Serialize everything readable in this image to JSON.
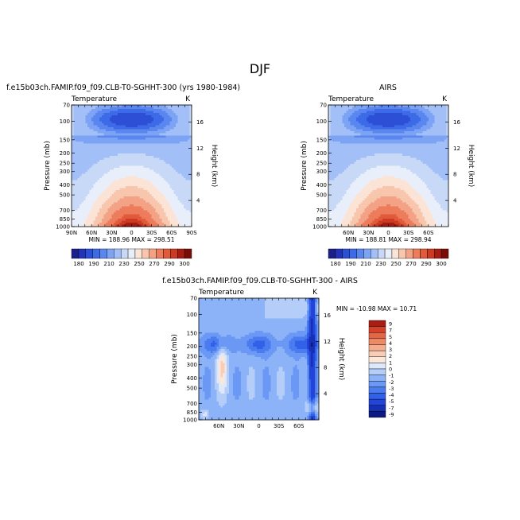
{
  "page_title": "DJF",
  "chart_data": [
    {
      "type": "heatmap",
      "title": "f.e15b03ch.FAMIP.f09_f09.CLB-T0-SGHHT-300 (yrs 1980-1984)",
      "field": "Temperature",
      "units": "K",
      "ylabel": "Pressure (mb)",
      "ylabel_right": "Height (km)",
      "x_ticks": [
        "90N",
        "60N",
        "30N",
        "0",
        "30S",
        "60S",
        "90S"
      ],
      "y_ticks": [
        "70",
        "100",
        "150",
        "200",
        "250",
        "300",
        "400",
        "500",
        "700",
        "850",
        "1000"
      ],
      "height_ticks": [
        "16",
        "12",
        "8",
        "4"
      ],
      "ylim": [
        1000,
        70
      ],
      "min_label": "MIN = 188.96",
      "max_label": "MAX = 298.51",
      "colorbar_labels": [
        "180",
        "190",
        "210",
        "230",
        "250",
        "270",
        "290",
        "300"
      ]
    },
    {
      "type": "heatmap",
      "title": "AIRS",
      "field": "Temperature",
      "units": "K",
      "ylabel": "Pressure (mb)",
      "ylabel_right": "Height (km)",
      "x_ticks": [
        "60N",
        "30N",
        "0",
        "30S",
        "60S"
      ],
      "y_ticks": [
        "70",
        "100",
        "150",
        "200",
        "250",
        "300",
        "400",
        "500",
        "700",
        "850",
        "1000"
      ],
      "height_ticks": [
        "16",
        "12",
        "8",
        "4"
      ],
      "ylim": [
        1000,
        70
      ],
      "min_label": "MIN = 188.81",
      "max_label": "MAX = 298.94",
      "colorbar_labels": [
        "180",
        "190",
        "210",
        "230",
        "250",
        "270",
        "290",
        "300"
      ]
    },
    {
      "type": "heatmap",
      "title": "f.e15b03ch.FAMIP.f09_f09.CLB-T0-SGHHT-300 - AIRS",
      "field": "Temperature",
      "units": "K",
      "ylabel": "Pressure (mb)",
      "ylabel_right": "Height (km)",
      "x_ticks": [
        "60N",
        "30N",
        "0",
        "30S",
        "60S"
      ],
      "y_ticks": [
        "70",
        "100",
        "150",
        "200",
        "250",
        "300",
        "400",
        "500",
        "700",
        "850",
        "1000"
      ],
      "height_ticks": [
        "16",
        "12",
        "8",
        "4"
      ],
      "ylim": [
        1000,
        70
      ],
      "min_label": "MIN = -10.98",
      "max_label": "MAX =  10.71",
      "colorbar_labels": [
        "9",
        "7",
        "5",
        "4",
        "3",
        "2",
        "1",
        "0",
        "-1",
        "-2",
        "-3",
        "-4",
        "-5",
        "-7",
        "-9"
      ]
    }
  ],
  "palette_abs": [
    "#1b1f8c",
    "#2233b8",
    "#2d4fd6",
    "#3d6ae6",
    "#5a86f0",
    "#7da3f5",
    "#a3bff8",
    "#c8d9f8",
    "#e9eefb",
    "#fbe4d6",
    "#f7c6ad",
    "#f3a285",
    "#ec7c5b",
    "#e15a3b",
    "#cc3a24",
    "#a61c12",
    "#7a0c08"
  ],
  "palette_diff": [
    "#0a1a80",
    "#1530b5",
    "#2244d8",
    "#3360e8",
    "#4a7cf0",
    "#6a98f4",
    "#8cb2f7",
    "#b4cdf9",
    "#dde8fb",
    "#fbe6da",
    "#f8cdb7",
    "#f5ad8e",
    "#ef8a67",
    "#e66546",
    "#d4412a",
    "#a81e14"
  ]
}
